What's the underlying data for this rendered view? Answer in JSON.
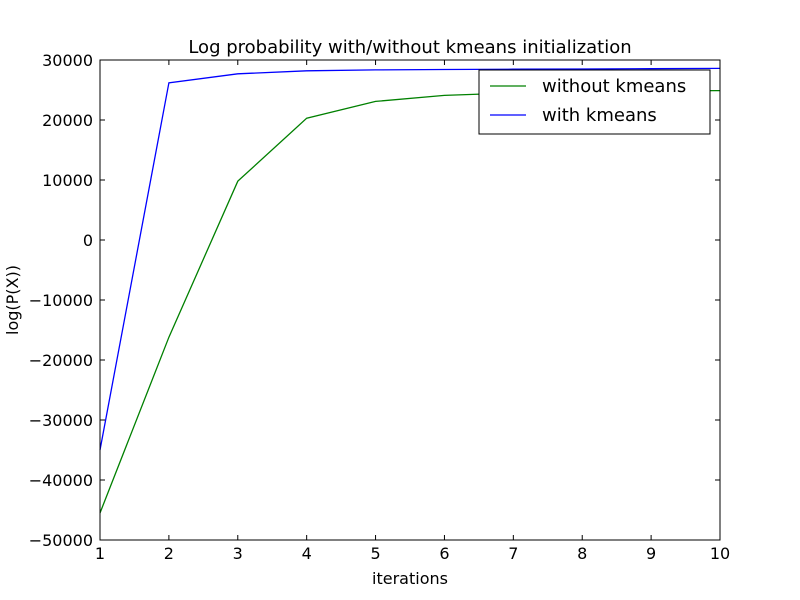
{
  "chart_data": {
    "type": "line",
    "title": "Log probability with/without kmeans initialization",
    "xlabel": "iterations",
    "ylabel": "log(P(X))",
    "xlim": [
      1,
      10
    ],
    "ylim": [
      -50000,
      30000
    ],
    "xticks": [
      1,
      2,
      3,
      4,
      5,
      6,
      7,
      8,
      9,
      10
    ],
    "yticks": [
      -50000,
      -40000,
      -30000,
      -20000,
      -10000,
      0,
      10000,
      20000,
      30000
    ],
    "ytick_labels": [
      "−50000",
      "−40000",
      "−30000",
      "−20000",
      "−10000",
      "0",
      "10000",
      "20000",
      "30000"
    ],
    "x": [
      1,
      2,
      3,
      4,
      5,
      6,
      7,
      8,
      9,
      10
    ],
    "grid": false,
    "legend_position": "top-right",
    "series": [
      {
        "name": "without kmeans",
        "color": "#008000",
        "values": [
          -45500,
          -16200,
          9800,
          20300,
          23100,
          24100,
          24500,
          24700,
          24850,
          24900
        ]
      },
      {
        "name": "with kmeans",
        "color": "#0000ff",
        "values": [
          -35000,
          26200,
          27700,
          28200,
          28350,
          28420,
          28470,
          28500,
          28550,
          28600
        ]
      }
    ]
  }
}
